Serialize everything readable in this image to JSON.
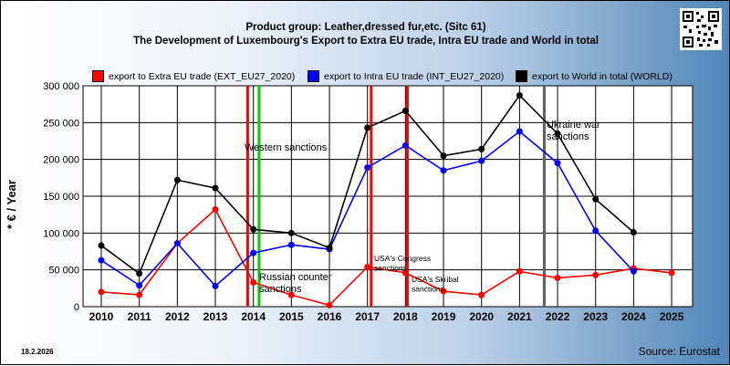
{
  "header": {
    "title_line1": "Product group: Leather,dressed fur,etc. (Sitc 61)",
    "title_line2": "The Development of Luxembourg's Export to Extra EU trade, Intra EU trade and World in total"
  },
  "footer": {
    "date": "18.2.2026",
    "source": "Source: Eurostat"
  },
  "colors": {
    "extra": "#ff0000",
    "intra": "#0000ff",
    "world": "#000000"
  },
  "chart_data": {
    "type": "line",
    "ylabel": "* € / Year",
    "ylim": [
      0,
      300000
    ],
    "yticks": [
      0,
      50000,
      100000,
      150000,
      200000,
      250000,
      300000
    ],
    "ytick_labels": [
      "0",
      "50 000",
      "100 000",
      "150 000",
      "200 000",
      "250 000",
      "300 000"
    ],
    "categories": [
      "2010",
      "2011",
      "2012",
      "2013",
      "2014",
      "2015",
      "2016",
      "2017",
      "2018",
      "2019",
      "2020",
      "2021",
      "2022",
      "2023",
      "2024",
      "2025"
    ],
    "grid": true,
    "legend_position": "top",
    "series": [
      {
        "name": "export to Extra EU trade (EXT_EU27_2020)",
        "key": "extra",
        "values": [
          20000,
          16000,
          86000,
          132000,
          33000,
          16000,
          2000,
          54000,
          46000,
          21000,
          16000,
          48000,
          39000,
          43000,
          52000,
          46000
        ]
      },
      {
        "name": "export to Intra EU trade (INT_EU27_2020)",
        "key": "intra",
        "values": [
          63000,
          29000,
          86000,
          28000,
          73000,
          84000,
          78000,
          189000,
          219000,
          185000,
          198000,
          238000,
          195000,
          103000,
          48000,
          null
        ]
      },
      {
        "name": "export to World in total (WORLD)",
        "key": "world",
        "values": [
          83000,
          45000,
          172000,
          161000,
          105000,
          100000,
          80000,
          243000,
          266000,
          205000,
          214000,
          287000,
          235000,
          146000,
          101000,
          null
        ]
      }
    ],
    "events": [
      {
        "label": "Western sanctions",
        "x": 2013.85,
        "color": "#ff0000"
      },
      {
        "label": "Russian counter sanctions",
        "x": 2014.15,
        "color": "#00cc00"
      },
      {
        "label": "USA's Congress sanctions",
        "x": 2017.1,
        "color": "#ff0000"
      },
      {
        "label": "USA's Skribal sanctions",
        "x": 2018.05,
        "color": "#ff0000"
      },
      {
        "label": "Ukraine war sanctions",
        "x": 2021.65,
        "color": "#606060"
      }
    ]
  }
}
